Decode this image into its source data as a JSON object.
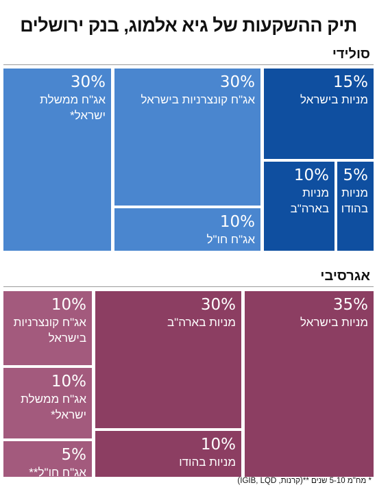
{
  "title": "תיק ההשקעות של גיא אלמוג, בנק ירושלים",
  "colors": {
    "solid_light": "#4a86cf",
    "solid_dark": "#0f4fa0",
    "aggressive": "#8c3e62",
    "aggressive_light": "#a35a7d"
  },
  "chart_data": [
    {
      "type": "treemap",
      "title": "סולידי",
      "items": [
        {
          "pct": "30%",
          "value": 30,
          "label": "אג\"ח ממשלת\nישראל*",
          "color": "#4a86cf"
        },
        {
          "pct": "30%",
          "value": 30,
          "label": "אג\"ח קונצרניות בישראל",
          "color": "#4a86cf"
        },
        {
          "pct": "10%",
          "value": 10,
          "label": "אג\"ח חו\"ל\n(קרנות, IGIB, LQD)",
          "color": "#4a86cf"
        },
        {
          "pct": "15%",
          "value": 15,
          "label": "מניות בישראל",
          "color": "#0f4fa0"
        },
        {
          "pct": "10%",
          "value": 10,
          "label": "מניות\nבארה\"ב",
          "color": "#0f4fa0"
        },
        {
          "pct": "5%",
          "value": 5,
          "label": "מניות\nבהודו",
          "color": "#0f4fa0"
        }
      ]
    },
    {
      "type": "treemap",
      "title": "אגרסיבי",
      "items": [
        {
          "pct": "10%",
          "value": 10,
          "label": "אג\"ח קונצרניות\nבישראל",
          "color": "#a35a7d"
        },
        {
          "pct": "10%",
          "value": 10,
          "label": "אג\"ח ממשלת\nישראל*",
          "color": "#a35a7d"
        },
        {
          "pct": "5%",
          "value": 5,
          "label": "אג\"ח חו\"ל**",
          "color": "#a35a7d"
        },
        {
          "pct": "30%",
          "value": 30,
          "label": "מניות בארה\"ב",
          "color": "#8c3e62"
        },
        {
          "pct": "10%",
          "value": 10,
          "label": "מניות בהודו",
          "color": "#8c3e62"
        },
        {
          "pct": "35%",
          "value": 35,
          "label": "מניות בישראל",
          "color": "#8c3e62"
        }
      ]
    }
  ],
  "footnote_1": "* מח\"מ 5-10 שנים **(קרנות, IGIB,",
  "footnote_2": "LQD)"
}
